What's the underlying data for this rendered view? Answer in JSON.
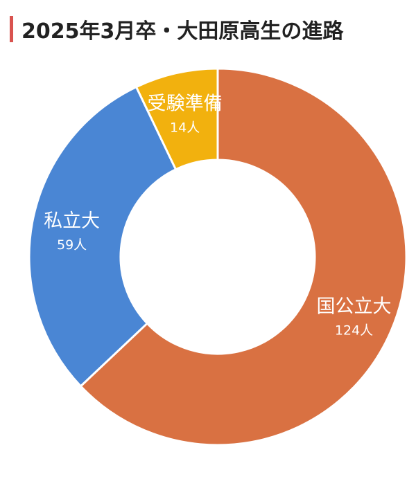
{
  "title": "2025年3月卒・大田原高生の進路",
  "colors": {
    "title_accent": "#d9534f"
  },
  "chart_data": {
    "type": "pie",
    "donut": true,
    "unit": "人",
    "slices": [
      {
        "label": "国公立大",
        "value": 124,
        "display": "124人",
        "color": "#d97142"
      },
      {
        "label": "私立大",
        "value": 59,
        "display": "59人",
        "color": "#4a86d4"
      },
      {
        "label": "受験準備",
        "value": 14,
        "display": "14人",
        "color": "#f2b10e"
      }
    ]
  }
}
